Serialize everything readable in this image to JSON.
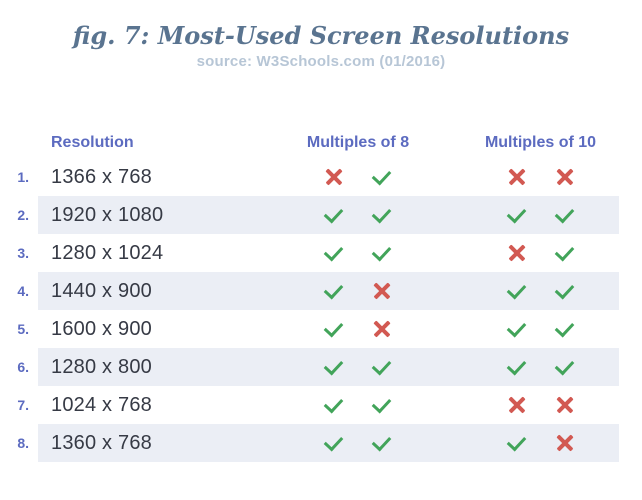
{
  "title": "fig. 7: Most-Used Screen Resolutions",
  "subtitle": "source: W3Schools.com (01/2016)",
  "colors": {
    "accent_purple": "#5c6bc0",
    "check_green": "#42a45a",
    "cross_red": "#d25952",
    "stripe": "#ebeef5",
    "title_blue": "#5a7490",
    "source_gray": "#b7c6d6",
    "text_dark": "#363a45"
  },
  "chart_data": {
    "type": "table",
    "title": "fig. 7: Most-Used Screen Resolutions",
    "subtitle": "source: W3Schools.com (01/2016)",
    "columns": [
      "Resolution",
      "Multiples of 8",
      "Multiples of 10"
    ],
    "legend": {
      "check-icon": "yes",
      "cross-icon": "no"
    },
    "rows": [
      {
        "rank": "1.",
        "resolution": "1366 x 768",
        "marks": [
          "cross-icon",
          "check-icon",
          "cross-icon",
          "cross-icon"
        ]
      },
      {
        "rank": "2.",
        "resolution": "1920 x 1080",
        "marks": [
          "check-icon",
          "check-icon",
          "check-icon",
          "check-icon"
        ]
      },
      {
        "rank": "3.",
        "resolution": "1280 x 1024",
        "marks": [
          "check-icon",
          "check-icon",
          "cross-icon",
          "check-icon"
        ]
      },
      {
        "rank": "4.",
        "resolution": "1440 x 900",
        "marks": [
          "check-icon",
          "cross-icon",
          "check-icon",
          "check-icon"
        ]
      },
      {
        "rank": "5.",
        "resolution": "1600 x 900",
        "marks": [
          "check-icon",
          "cross-icon",
          "check-icon",
          "check-icon"
        ]
      },
      {
        "rank": "6.",
        "resolution": "1280 x 800",
        "marks": [
          "check-icon",
          "check-icon",
          "check-icon",
          "check-icon"
        ]
      },
      {
        "rank": "7.",
        "resolution": "1024 x 768",
        "marks": [
          "check-icon",
          "check-icon",
          "cross-icon",
          "cross-icon"
        ]
      },
      {
        "rank": "8.",
        "resolution": "1360 x 768",
        "marks": [
          "check-icon",
          "check-icon",
          "check-icon",
          "cross-icon"
        ]
      }
    ]
  }
}
